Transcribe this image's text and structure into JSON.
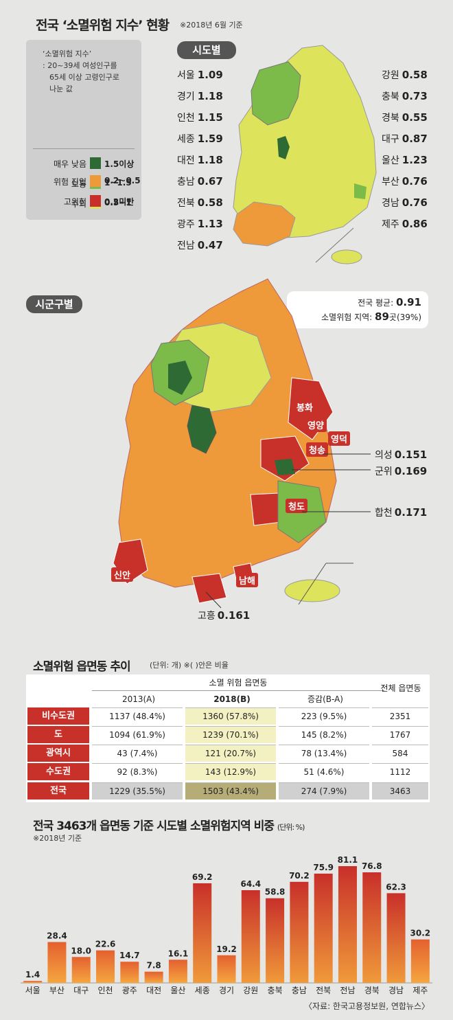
{
  "header": {
    "title": "전국 ‘소멸위험 지수’ 현황",
    "note": "※2018년 6월 기준"
  },
  "legend": {
    "definition": [
      "‘소멸위험 지수’",
      ": 20~39세 여성인구를",
      "65세 이상 고령인구로",
      "나눈 값"
    ],
    "items": [
      {
        "label": "매우 낮음",
        "range": "1.5이상",
        "color": "#2e6b34"
      },
      {
        "label": "보통",
        "range": "1~1.5",
        "color": "#7cba4a"
      },
      {
        "label": "주의",
        "range": "0.5~1",
        "color": "#dde45c"
      },
      {
        "label": "위험 진입",
        "range": "0.2~0.5",
        "color": "#ee9a3a"
      },
      {
        "label": "고위험",
        "range": "0.2미만",
        "color": "#c8302a"
      }
    ]
  },
  "sido_map": {
    "label": "시도별",
    "left": [
      {
        "name": "서울",
        "value": "1.09"
      },
      {
        "name": "경기",
        "value": "1.18"
      },
      {
        "name": "인천",
        "value": "1.15"
      },
      {
        "name": "세종",
        "value": "1.59"
      },
      {
        "name": "대전",
        "value": "1.18"
      },
      {
        "name": "충남",
        "value": "0.67"
      },
      {
        "name": "전북",
        "value": "0.58"
      },
      {
        "name": "광주",
        "value": "1.13"
      },
      {
        "name": "전남",
        "value": "0.47"
      }
    ],
    "right": [
      {
        "name": "강원",
        "value": "0.58"
      },
      {
        "name": "충북",
        "value": "0.73"
      },
      {
        "name": "경북",
        "value": "0.55"
      },
      {
        "name": "대구",
        "value": "0.87"
      },
      {
        "name": "울산",
        "value": "1.23"
      },
      {
        "name": "부산",
        "value": "0.76"
      },
      {
        "name": "경남",
        "value": "0.76"
      },
      {
        "name": "제주",
        "value": "0.86"
      }
    ]
  },
  "sigungu_map": {
    "label": "시군구별",
    "avg_label": "전국 평균:",
    "avg_value": "0.91",
    "risk_label": "소멸위험 지역:",
    "risk_value": "89",
    "risk_suffix": "곳(39%)",
    "red_labels": [
      "봉화",
      "영양",
      "영덕",
      "청송",
      "청도",
      "신안",
      "남해"
    ],
    "callouts": [
      {
        "name": "의성",
        "value": "0.151"
      },
      {
        "name": "군위",
        "value": "0.169"
      },
      {
        "name": "합천",
        "value": "0.171"
      },
      {
        "name": "고흥",
        "value": "0.161"
      }
    ]
  },
  "trend_table": {
    "title": "소멸위험 읍면동 추이",
    "note": "(단위: 개)  ※( )안은 비율",
    "group_header": "소멸 위험 읍면동",
    "columns": [
      "2013(A)",
      "2018(B)",
      "증감(B-A)",
      "전체 읍면동"
    ],
    "rows": [
      {
        "label": "비수도권",
        "a": "1137 (48.4%)",
        "b": "1360 (57.8%)",
        "diff": "223 (9.5%)",
        "total": "2351"
      },
      {
        "label": "도",
        "a": "1094 (61.9%)",
        "b": "1239 (70.1%)",
        "diff": "145 (8.2%)",
        "total": "1767"
      },
      {
        "label": "광역시",
        "a": "43 (7.4%)",
        "b": "121 (20.7%)",
        "diff": "78 (13.4%)",
        "total": "584"
      },
      {
        "label": "수도권",
        "a": "92 (8.3%)",
        "b": "143 (12.9%)",
        "diff": "51 (4.6%)",
        "total": "1112"
      },
      {
        "label": "전국",
        "a": "1229 (35.5%)",
        "b": "1503 (43.4%)",
        "diff": "274 (7.9%)",
        "total": "3463"
      }
    ]
  },
  "bar_section": {
    "title": "전국 3463개 읍면동 기준 시도별 소멸위험지역 비중",
    "unit": "(단위: %)",
    "note": "※2018년 기준"
  },
  "chart_data": {
    "type": "bar",
    "title": "전국 3463개 읍면동 기준 시도별 소멸위험지역 비중",
    "categories": [
      "서울",
      "부산",
      "대구",
      "인천",
      "광주",
      "대전",
      "울산",
      "세종",
      "경기",
      "강원",
      "충북",
      "충남",
      "전북",
      "전남",
      "경북",
      "경남",
      "제주"
    ],
    "values": [
      1.4,
      28.4,
      18.0,
      22.6,
      14.7,
      7.8,
      16.1,
      69.2,
      19.2,
      64.4,
      58.8,
      70.2,
      75.9,
      81.1,
      76.8,
      62.3,
      30.2
    ],
    "value_labels": [
      "1.4",
      "28.4",
      "18.0",
      "22.6",
      "14.7",
      "7.8",
      "16.1",
      "69.2",
      "19.2",
      "64.4",
      "58.8",
      "70.2",
      "75.9",
      "81.1",
      "76.8",
      "62.3",
      "30.2"
    ],
    "ylim": [
      0,
      81.1
    ],
    "grid": false,
    "colors": {
      "low": "#f09a3a",
      "high": "#c8302a"
    }
  },
  "source": "〈자료: 한국고용정보원, 연합뉴스〉"
}
